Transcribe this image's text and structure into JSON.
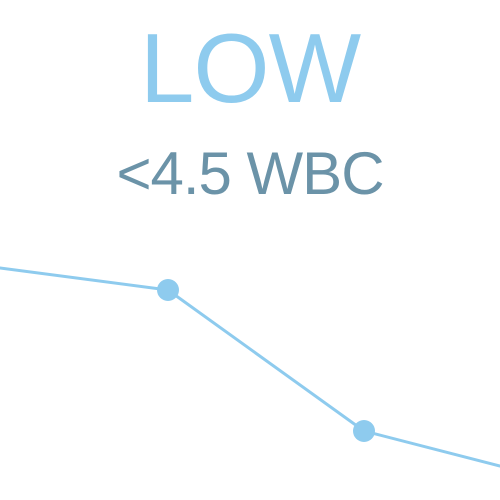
{
  "status": {
    "label": "LOW",
    "threshold": "<4.5 WBC"
  },
  "colors": {
    "accent": "#8ecbee",
    "text_secondary": "#6b93a8",
    "background": "#ffffff"
  },
  "trend": {
    "icon": "decreasing-trend-line",
    "points": [
      {
        "x": 0,
        "y": 0.84
      },
      {
        "x": 1,
        "y": 0.77
      },
      {
        "x": 2,
        "y": 0.24
      },
      {
        "x": 3,
        "y": 0.0
      }
    ],
    "marked_points": [
      1,
      2
    ]
  }
}
